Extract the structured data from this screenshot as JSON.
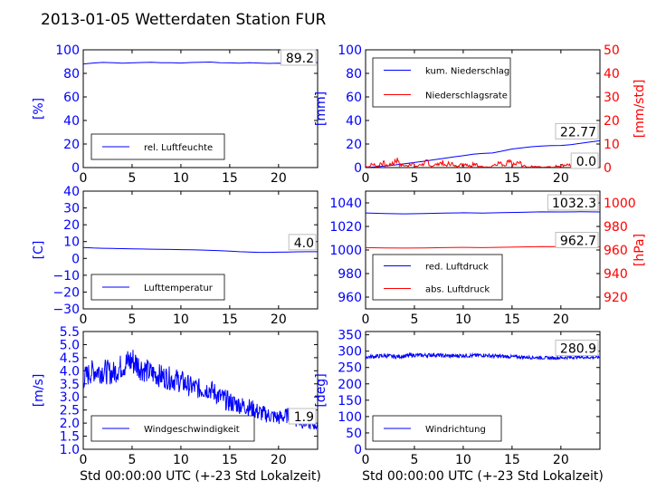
{
  "figure": {
    "title": "2013-01-05 Wetterdaten Station FUR\u0000",
    "title_display": "2013-01-05 Wetterdaten Station FUR",
    "colors": {
      "blue": "#0000ff",
      "red": "#ff0000",
      "black": "#000000",
      "grid": "#c8c8c8"
    }
  },
  "chart_data": [
    {
      "type": "line",
      "id": "humidity",
      "xlim": [
        0,
        24
      ],
      "xticks": [
        "0",
        "5",
        "10",
        "15",
        "20"
      ],
      "ylim": [
        0,
        100
      ],
      "yticks": [
        "0",
        "20",
        "40",
        "60",
        "80",
        "100"
      ],
      "ylabel": "[%]",
      "last_value": "89.2",
      "series": [
        {
          "name": "rel. Luftfeuchte",
          "color": "#0000ff",
          "x": [
            0,
            1,
            2,
            3,
            4,
            5,
            6,
            7,
            8,
            9,
            10,
            11,
            12,
            13,
            14,
            15,
            16,
            17,
            18,
            19,
            20,
            21,
            22,
            23,
            24
          ],
          "y": [
            88.0,
            88.8,
            89.3,
            89.0,
            88.7,
            88.9,
            89.2,
            89.4,
            89.1,
            89.0,
            88.8,
            89.2,
            89.4,
            89.6,
            89.0,
            88.9,
            88.7,
            89.0,
            88.8,
            88.5,
            88.6,
            88.3,
            88.4,
            88.9,
            89.2
          ]
        }
      ]
    },
    {
      "type": "line",
      "id": "precip",
      "xlim": [
        0,
        24
      ],
      "xticks": [
        "0",
        "5",
        "10",
        "15",
        "20"
      ],
      "ylim": [
        0,
        100
      ],
      "yticks": [
        "0",
        "20",
        "40",
        "60",
        "80",
        "100"
      ],
      "ylabel": "[mm]",
      "ylim_right": [
        0,
        50
      ],
      "yticks_right": [
        "0",
        "10",
        "20",
        "30",
        "40",
        "50"
      ],
      "ylabel_right": "[mm/std]",
      "last_value": "22.77",
      "last_value_right": "0.0",
      "series": [
        {
          "name": "kum. Niederschlag",
          "color": "#0000ff",
          "axis": "left",
          "x": [
            0,
            1,
            2,
            3,
            4,
            5,
            6,
            7,
            8,
            9,
            10,
            11,
            12,
            13,
            14,
            15,
            16,
            17,
            18,
            19,
            20,
            21,
            22,
            23,
            24
          ],
          "y": [
            0.0,
            0.6,
            1.3,
            2.2,
            3.2,
            4.3,
            5.4,
            6.6,
            7.8,
            9.0,
            10.1,
            11.3,
            12.0,
            12.4,
            14.0,
            15.8,
            16.8,
            17.7,
            18.2,
            18.6,
            18.8,
            19.5,
            20.5,
            21.8,
            22.77
          ]
        },
        {
          "name": "Niederschlagsrate",
          "color": "#ff0000",
          "axis": "right",
          "x": [
            0,
            0.5,
            1,
            1.5,
            2,
            2.5,
            3,
            3.5,
            4,
            4.5,
            5,
            5.5,
            6,
            6.5,
            7,
            7.5,
            8,
            8.5,
            9,
            9.5,
            10,
            10.5,
            11,
            11.5,
            12,
            12.5,
            13,
            13.5,
            14,
            14.5,
            15,
            15.5,
            16,
            16.5,
            17,
            17.5,
            18,
            18.5,
            19,
            19.5,
            20,
            20.5,
            21,
            21.5,
            22,
            22.5,
            23,
            23.5,
            24
          ],
          "y": [
            0.5,
            1.5,
            0.8,
            2.2,
            1.0,
            1.8,
            3.8,
            1.2,
            0.9,
            2.0,
            0.7,
            1.6,
            2.6,
            0.8,
            1.5,
            2.4,
            1.1,
            2.0,
            0.8,
            1.4,
            1.9,
            0.9,
            2.1,
            0.5,
            0.3,
            0.4,
            1.2,
            2.0,
            0.9,
            2.5,
            1.5,
            2.2,
            0.8,
            0.3,
            0.6,
            0.4,
            0.2,
            0.5,
            0.2,
            0.8,
            1.2,
            1.5,
            0.4,
            0.2,
            0.6,
            0.9,
            0.3,
            0.1,
            0.0
          ]
        }
      ]
    },
    {
      "type": "line",
      "id": "temperature",
      "xlim": [
        0,
        24
      ],
      "xticks": [
        "0",
        "5",
        "10",
        "15",
        "20"
      ],
      "ylim": [
        -30,
        40
      ],
      "yticks": [
        "−30",
        "−20",
        "−10",
        "0",
        "10",
        "20",
        "30",
        "40"
      ],
      "ylabel": "[C]",
      "last_value": "4.0",
      "series": [
        {
          "name": "Lufttemperatur",
          "color": "#0000ff",
          "x": [
            0,
            1,
            2,
            3,
            4,
            5,
            6,
            7,
            8,
            9,
            10,
            11,
            12,
            13,
            14,
            15,
            16,
            17,
            18,
            19,
            20,
            21,
            22,
            23,
            24
          ],
          "y": [
            6.5,
            6.2,
            6.0,
            5.9,
            5.8,
            5.7,
            5.6,
            5.5,
            5.4,
            5.3,
            5.2,
            5.1,
            5.0,
            4.8,
            4.6,
            4.3,
            4.0,
            3.8,
            3.6,
            3.6,
            3.7,
            3.8,
            3.9,
            4.0,
            4.0
          ]
        }
      ]
    },
    {
      "type": "line",
      "id": "pressure",
      "xlim": [
        0,
        24
      ],
      "xticks": [
        "0",
        "5",
        "10",
        "15",
        "20"
      ],
      "ylim": [
        950,
        1050
      ],
      "yticks": [
        "960",
        "980",
        "1000",
        "1020",
        "1040"
      ],
      "ylim_right": [
        910,
        1010
      ],
      "yticks_right": [
        "920",
        "940",
        "960",
        "980",
        "1000"
      ],
      "ylabel_right": "[hPa]",
      "last_value": "1032.3",
      "last_value_right": "962.7",
      "series": [
        {
          "name": "red. Luftdruck",
          "color": "#0000ff",
          "axis": "left",
          "x": [
            0,
            2,
            4,
            6,
            8,
            10,
            12,
            14,
            16,
            18,
            20,
            22,
            24
          ],
          "y": [
            1031.5,
            1031.0,
            1030.7,
            1031.0,
            1031.3,
            1031.6,
            1031.4,
            1031.7,
            1032.0,
            1032.4,
            1032.3,
            1032.5,
            1032.3
          ]
        },
        {
          "name": "abs. Luftdruck",
          "color": "#ff0000",
          "axis": "right",
          "x": [
            0,
            2,
            4,
            6,
            8,
            10,
            12,
            14,
            16,
            18,
            20,
            22,
            24
          ],
          "y": [
            962.0,
            961.8,
            961.6,
            961.8,
            962.0,
            962.2,
            962.0,
            962.3,
            962.6,
            962.9,
            962.8,
            962.9,
            962.7
          ]
        }
      ]
    },
    {
      "type": "line",
      "id": "wind_speed",
      "xlim": [
        0,
        24
      ],
      "xticks": [
        "0",
        "5",
        "10",
        "15",
        "20"
      ],
      "xlabel": "Std 00:00:00 UTC (+-23 Std Lokalzeit)",
      "ylim": [
        1.0,
        5.5
      ],
      "yticks": [
        "1.0",
        "1.5",
        "2.0",
        "2.5",
        "3.0",
        "3.5",
        "4.0",
        "4.5",
        "5.0",
        "5.5"
      ],
      "ylabel": "[m/s]",
      "last_value": "1.9",
      "series": [
        {
          "name": "Windgeschwindigkeit",
          "color": "#0000ff",
          "x": [
            0,
            1,
            2,
            3,
            4,
            5,
            6,
            7,
            8,
            9,
            10,
            11,
            12,
            13,
            14,
            15,
            16,
            17,
            18,
            19,
            20,
            21,
            22,
            23,
            24
          ],
          "y": [
            3.7,
            4.0,
            4.0,
            3.9,
            4.2,
            4.4,
            4.1,
            3.9,
            3.8,
            3.7,
            3.6,
            3.4,
            3.3,
            3.3,
            3.0,
            2.8,
            2.7,
            2.6,
            2.4,
            2.3,
            2.2,
            2.3,
            2.1,
            2.0,
            1.9
          ],
          "spread": [
            0.45,
            0.45,
            0.5,
            0.45,
            0.5,
            0.6,
            0.5,
            0.45,
            0.45,
            0.45,
            0.45,
            0.4,
            0.4,
            0.4,
            0.4,
            0.4,
            0.35,
            0.35,
            0.35,
            0.3,
            0.3,
            0.3,
            0.3,
            0.25,
            0.2
          ]
        }
      ]
    },
    {
      "type": "line",
      "id": "wind_direction",
      "xlim": [
        0,
        24
      ],
      "xticks": [
        "0",
        "5",
        "10",
        "15",
        "20"
      ],
      "xlabel": "Std 00:00:00 UTC (+-23 Std Lokalzeit)",
      "ylim": [
        0,
        360
      ],
      "yticks": [
        "0",
        "50",
        "100",
        "150",
        "200",
        "250",
        "300",
        "350"
      ],
      "ylabel": "[deg]",
      "last_value": "280.9",
      "series": [
        {
          "name": "Windrichtung",
          "color": "#0000ff",
          "x": [
            0,
            1,
            2,
            3,
            4,
            5,
            6,
            7,
            8,
            9,
            10,
            11,
            12,
            13,
            14,
            15,
            16,
            17,
            18,
            19,
            20,
            21,
            22,
            23,
            24
          ],
          "y": [
            282,
            284,
            286,
            283,
            285,
            288,
            287,
            289,
            286,
            285,
            287,
            286,
            288,
            285,
            284,
            283,
            282,
            281,
            280,
            279,
            280,
            281,
            282,
            281,
            280.9
          ],
          "spread": [
            6,
            6,
            6,
            6,
            6,
            6,
            6,
            6,
            6,
            6,
            6,
            6,
            6,
            6,
            6,
            5,
            5,
            5,
            5,
            5,
            5,
            5,
            5,
            5,
            4
          ]
        }
      ]
    }
  ]
}
